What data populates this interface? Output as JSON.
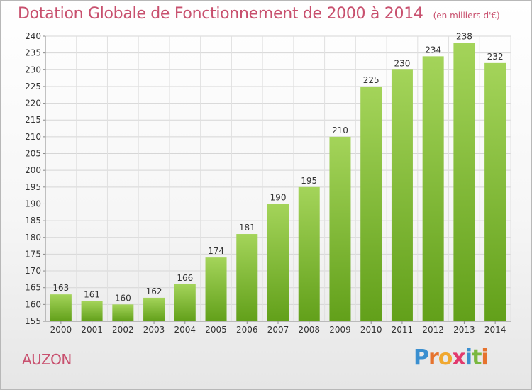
{
  "title": "Dotation Globale de Fonctionnement de 2000 à 2014",
  "subtitle": "(en milliers d'€)",
  "commune": "AUZON",
  "logo": {
    "letters": [
      "P",
      "r",
      "o",
      "x",
      "i",
      "t",
      "i"
    ],
    "colors": [
      "#3a8fd0",
      "#e6732e",
      "#f0a830",
      "#e23a6e",
      "#3a8fd0",
      "#7ab840",
      "#e6732e"
    ]
  },
  "colors": {
    "accent": "#c8506e",
    "bar_light": "#a4d45a",
    "bar_dark": "#62a01a"
  },
  "chart_data": {
    "type": "bar",
    "title": "Dotation Globale de Fonctionnement de 2000 à 2014",
    "subtitle": "(en milliers d'€)",
    "categories": [
      "2000",
      "2001",
      "2002",
      "2003",
      "2004",
      "2005",
      "2006",
      "2007",
      "2008",
      "2009",
      "2010",
      "2011",
      "2012",
      "2013",
      "2014"
    ],
    "values": [
      163,
      161,
      160,
      162,
      166,
      174,
      181,
      190,
      195,
      210,
      225,
      230,
      234,
      238,
      232
    ],
    "xlabel": "",
    "ylabel": "",
    "ylim": [
      155,
      240
    ],
    "yticks": [
      155,
      160,
      165,
      170,
      175,
      180,
      185,
      190,
      195,
      200,
      205,
      210,
      215,
      220,
      225,
      230,
      235,
      240
    ],
    "grid": true,
    "data_labels": true
  }
}
